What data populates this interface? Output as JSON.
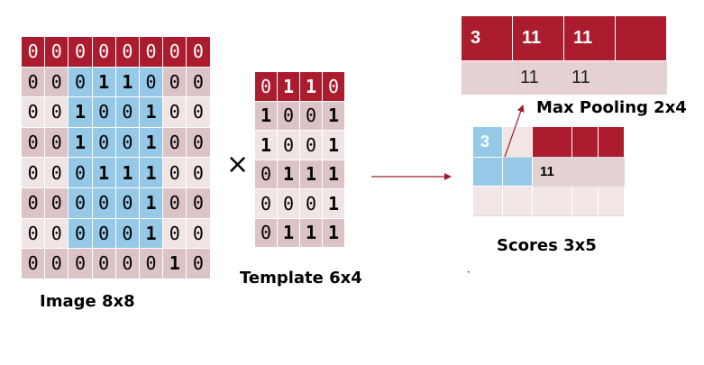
{
  "image": {
    "label": "Image 8x8",
    "rows": [
      [
        "0",
        "0",
        "0",
        "0",
        "0",
        "0",
        "0",
        "0"
      ],
      [
        "0",
        "0",
        "0",
        "1",
        "1",
        "0",
        "0",
        "0"
      ],
      [
        "0",
        "0",
        "1",
        "0",
        "0",
        "1",
        "0",
        "0"
      ],
      [
        "0",
        "0",
        "1",
        "0",
        "0",
        "1",
        "0",
        "0"
      ],
      [
        "0",
        "0",
        "0",
        "1",
        "1",
        "1",
        "0",
        "0"
      ],
      [
        "0",
        "0",
        "0",
        "0",
        "0",
        "1",
        "0",
        "0"
      ],
      [
        "0",
        "0",
        "0",
        "0",
        "0",
        "1",
        "0",
        "0"
      ],
      [
        "0",
        "0",
        "0",
        "0",
        "0",
        "0",
        "1",
        "0"
      ]
    ]
  },
  "operator": "×",
  "template": {
    "label": "Template 6x4",
    "rows": [
      [
        "0",
        "1",
        "1",
        "0"
      ],
      [
        "1",
        "0",
        "0",
        "1"
      ],
      [
        "1",
        "0",
        "0",
        "1"
      ],
      [
        "0",
        "1",
        "1",
        "1"
      ],
      [
        "0",
        "0",
        "0",
        "1"
      ],
      [
        "0",
        "1",
        "1",
        "1"
      ]
    ]
  },
  "max_pooling": {
    "label": "Max Pooling 2x4",
    "top_row": [
      "3",
      "11",
      "11",
      ""
    ],
    "bottom_row": [
      "",
      "11",
      "11",
      ""
    ]
  },
  "scores": {
    "label": "Scores 3x5",
    "rows": [
      [
        "3",
        "",
        "",
        "",
        ""
      ],
      [
        "",
        "",
        "11",
        "",
        ""
      ],
      [
        "",
        "",
        "",
        "",
        ""
      ]
    ]
  },
  "colors": {
    "header_red": "#ab1c2f",
    "highlight_blue": "#95c9e7",
    "row_dark": "#dcc4c6",
    "row_light": "#f1e4e5",
    "arrow": "#a01c2c"
  }
}
